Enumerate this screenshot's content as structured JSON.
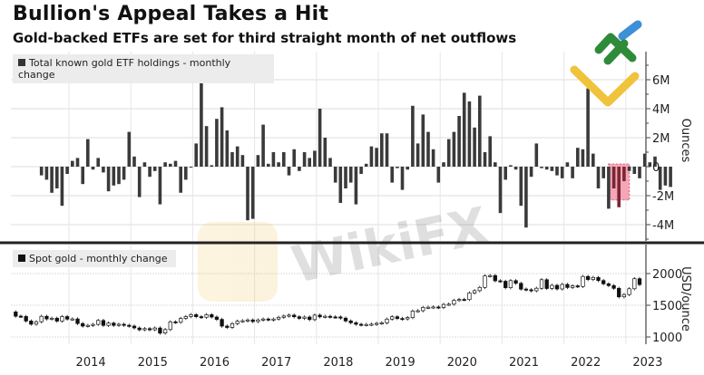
{
  "title": "Bullion's Appeal Takes a Hit",
  "subtitle": "Gold-backed ETFs are set for third straight month of net outflows",
  "watermark": "WikiFX",
  "chart_data": [
    {
      "type": "bar",
      "title": "Total known gold ETF holdings - monthly change",
      "legend": "Total known gold ETF holdings - monthly change",
      "ylabel": "Ounces",
      "ylim": [
        -5000000,
        8000000
      ],
      "yticks": [
        6000000,
        4000000,
        2000000,
        0,
        -2000000,
        -4000000
      ],
      "ytick_labels": [
        "6M",
        "4M",
        "2M",
        "0",
        "-2M",
        "-4M"
      ],
      "grid": true,
      "highlight": {
        "from_index": 111,
        "to_index": 113,
        "color": "#f4a6b8",
        "note": "last three months highlighted"
      },
      "start": "2013-07",
      "values": [
        -0.6,
        -0.9,
        -1.8,
        -1.5,
        -2.7,
        -0.5,
        0.4,
        0.6,
        -1.2,
        1.9,
        -0.2,
        0.6,
        -0.4,
        -1.7,
        -1.3,
        -1.2,
        -0.9,
        2.4,
        0.7,
        -2.1,
        0.3,
        -0.7,
        -0.3,
        -2.6,
        0.3,
        0.2,
        0.4,
        -1.8,
        -0.9,
        0,
        1.6,
        6.5,
        2.8,
        0.1,
        3.3,
        4.1,
        2.5,
        1.0,
        1.4,
        0.8,
        -3.7,
        -3.6,
        0.8,
        2.9,
        0.2,
        1.0,
        0.3,
        1.0,
        -0.6,
        1.2,
        -0.3,
        1.0,
        0.6,
        1.1,
        4.0,
        2.0,
        0.6,
        -1.1,
        -2.5,
        -1.5,
        -1.1,
        -2.6,
        -0.5,
        0.2,
        1.4,
        1.3,
        2.3,
        2.3,
        -1.1,
        -0.1,
        -1.6,
        -0.2,
        4.2,
        1.6,
        3.6,
        2.4,
        1.2,
        -1.1,
        0.3,
        1.9,
        2.4,
        3.5,
        5.1,
        4.5,
        2.7,
        4.9,
        1.0,
        2.1,
        0.3,
        -3.2,
        -0.9,
        0.1,
        -0.2,
        -2.7,
        -4.2,
        -0.7,
        1.6,
        -0.1,
        -0.2,
        -0.3,
        -0.6,
        -0.8,
        0.3,
        -0.8,
        1.3,
        1.2,
        5.4,
        0.9,
        -1.5,
        -0.8,
        -2.9,
        -1.5,
        -2.8,
        -1.0,
        -0.3,
        -0.5,
        -0.8,
        0.9,
        0.3,
        0.7,
        -1.6,
        -1.3,
        -1.4
      ]
    },
    {
      "type": "candlestick",
      "title": "Spot gold - monthly change",
      "legend": "Spot gold - monthly change",
      "ylabel": "USD/ounce",
      "ylim": [
        950,
        2250
      ],
      "yticks": [
        2000,
        1500,
        1000
      ],
      "ytick_labels": [
        "2000",
        "1500",
        "1000"
      ],
      "grid": true,
      "close": [
        1320,
        1395,
        1328,
        1323,
        1252,
        1202,
        1240,
        1326,
        1284,
        1296,
        1250,
        1322,
        1282,
        1285,
        1212,
        1172,
        1183,
        1199,
        1260,
        1183,
        1218,
        1183,
        1200,
        1184,
        1171,
        1142,
        1114,
        1132,
        1114,
        1142,
        1061,
        1117,
        1238,
        1232,
        1293,
        1322,
        1351,
        1320,
        1311,
        1351,
        1314,
        1277,
        1171,
        1150,
        1210,
        1249,
        1256,
        1268,
        1242,
        1268,
        1283,
        1270,
        1283,
        1310,
        1330,
        1344,
        1319,
        1293,
        1314,
        1274,
        1345,
        1318,
        1326,
        1316,
        1315,
        1297,
        1253,
        1224,
        1200,
        1191,
        1197,
        1201,
        1214,
        1223,
        1282,
        1319,
        1292,
        1283,
        1305,
        1409,
        1414,
        1465,
        1469,
        1473,
        1464,
        1513,
        1517,
        1577,
        1592,
        1591,
        1695,
        1730,
        1781,
        1963,
        1969,
        1886,
        1878,
        1776,
        1888,
        1846,
        1755,
        1745,
        1728,
        1768,
        1903,
        1765,
        1814,
        1757,
        1829,
        1781,
        1805,
        1796,
        1954,
        1905,
        1938,
        1890,
        1838,
        1810,
        1767,
        1633,
        1669,
        1760,
        1919,
        1826,
        1969,
        1990,
        1962,
        1944,
        1920,
        1928,
        1940
      ],
      "start": "2013-01"
    }
  ],
  "x_axis": {
    "year_labels": [
      "2014",
      "2015",
      "2016",
      "2017",
      "2018",
      "2019",
      "2020",
      "2021",
      "2022",
      "2023"
    ]
  },
  "colors": {
    "bar": "#3a3a3a",
    "highlight_fill": "#f4a6b8",
    "highlight_bar": "#7a2633",
    "grid": "#dcdcdc",
    "divider": "#222222",
    "candle_up": "#ffffff",
    "candle_down": "#111111"
  }
}
